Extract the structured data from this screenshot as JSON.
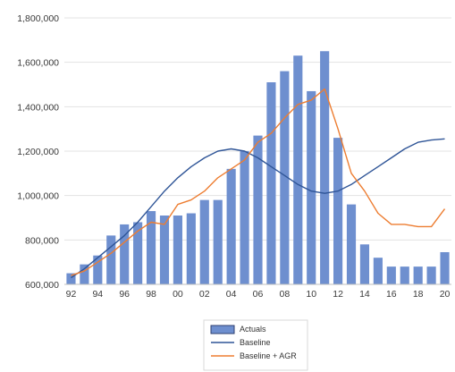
{
  "chart_data": {
    "type": "bar",
    "title": "",
    "xlabel": "",
    "ylabel": "",
    "ylim": [
      600000,
      1800000
    ],
    "y_ticks": [
      600000,
      800000,
      1000000,
      1200000,
      1400000,
      1600000,
      1800000
    ],
    "y_tick_labels": [
      "600,000",
      "800,000",
      "1,000,000",
      "1,200,000",
      "1,400,000",
      "1,600,000",
      "1,800,000"
    ],
    "categories": [
      "92",
      "93",
      "94",
      "95",
      "96",
      "97",
      "98",
      "99",
      "00",
      "01",
      "02",
      "03",
      "04",
      "05",
      "06",
      "07",
      "08",
      "09",
      "10",
      "11",
      "12",
      "13",
      "14",
      "15",
      "16",
      "17",
      "18",
      "19",
      "20"
    ],
    "x_tick_labels": [
      "92",
      "94",
      "96",
      "98",
      "00",
      "02",
      "04",
      "06",
      "08",
      "10",
      "12",
      "14",
      "16",
      "18",
      "20"
    ],
    "grid": true,
    "legend_position": "bottom",
    "series": [
      {
        "name": "Actuals",
        "kind": "bar",
        "color": "#6e8fcf",
        "values": [
          650000,
          690000,
          730000,
          820000,
          870000,
          880000,
          930000,
          910000,
          910000,
          920000,
          980000,
          980000,
          1120000,
          1200000,
          1270000,
          1510000,
          1560000,
          1630000,
          1470000,
          1650000,
          1260000,
          960000,
          780000,
          720000,
          680000,
          680000,
          680000,
          680000,
          745000
        ]
      },
      {
        "name": "Baseline",
        "kind": "line",
        "color": "#2f5597",
        "values": [
          630000,
          670000,
          720000,
          770000,
          820000,
          880000,
          950000,
          1020000,
          1080000,
          1130000,
          1170000,
          1200000,
          1210000,
          1200000,
          1170000,
          1130000,
          1090000,
          1050000,
          1020000,
          1010000,
          1020000,
          1050000,
          1090000,
          1130000,
          1170000,
          1210000,
          1240000,
          1250000,
          1255000
        ]
      },
      {
        "name": "Baseline + AGR",
        "kind": "line",
        "color": "#ed7d31",
        "values": [
          640000,
          660000,
          700000,
          740000,
          790000,
          840000,
          880000,
          870000,
          960000,
          980000,
          1020000,
          1080000,
          1120000,
          1160000,
          1240000,
          1280000,
          1350000,
          1410000,
          1430000,
          1480000,
          1300000,
          1100000,
          1020000,
          920000,
          870000,
          870000,
          860000,
          860000,
          940000
        ]
      }
    ]
  }
}
